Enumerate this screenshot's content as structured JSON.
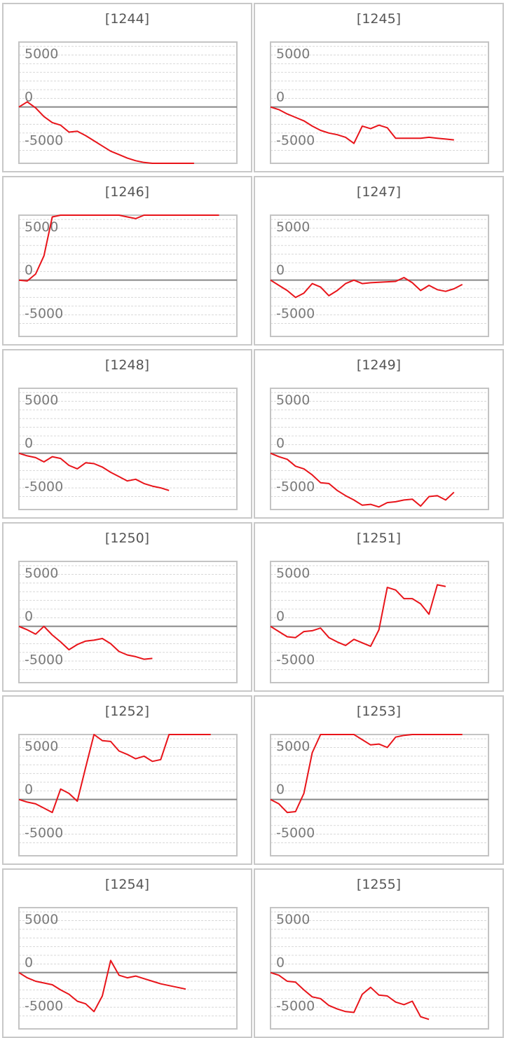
{
  "colors": {
    "line": "#e8141a",
    "zero": "#888888",
    "grid": "#d8d8d8",
    "frame": "#c4c4c4",
    "cap": "#f39a9a"
  },
  "chart_data": [
    {
      "type": "line",
      "title": "[1244]",
      "ylim": [
        -6500,
        7500
      ],
      "yticks": [
        5000,
        0,
        -5000
      ],
      "y": [
        0,
        600,
        -100,
        -1100,
        -1800,
        -2100,
        -2900,
        -2800,
        -3300,
        -3900,
        -4500,
        -5100,
        -5500,
        -5900,
        -6200,
        -6400,
        -6500,
        -6500,
        -6500,
        -6500,
        -6500,
        -6500
      ]
    },
    {
      "type": "line",
      "title": "[1245]",
      "ylim": [
        -6500,
        7500
      ],
      "yticks": [
        5000,
        0,
        -5000
      ],
      "y": [
        0,
        -300,
        -800,
        -1200,
        -1600,
        -2200,
        -2700,
        -3000,
        -3200,
        -3500,
        -4200,
        -2200,
        -2500,
        -2100,
        -2400,
        -3600,
        -3600,
        -3600,
        -3600,
        -3500,
        -3600,
        -3700,
        -3800
      ]
    },
    {
      "type": "line",
      "title": "[1246]",
      "ylim": [
        -6500,
        7500
      ],
      "yticks": [
        5000,
        0,
        -5000
      ],
      "y": [
        0,
        -100,
        700,
        2800,
        7300,
        7500,
        7500,
        7500,
        7500,
        7500,
        7500,
        7500,
        7500,
        7300,
        7100,
        7500,
        7500,
        7500,
        7500,
        7500,
        7500,
        7500,
        7500,
        7500,
        7500
      ]
    },
    {
      "type": "line",
      "title": "[1247]",
      "ylim": [
        -6500,
        7500
      ],
      "yticks": [
        5000,
        0,
        -5000
      ],
      "y": [
        0,
        -600,
        -1200,
        -2000,
        -1500,
        -400,
        -800,
        -1800,
        -1200,
        -400,
        0,
        -400,
        -300,
        -250,
        -200,
        -150,
        300,
        -300,
        -1200,
        -600,
        -1100,
        -1300,
        -1000,
        -500
      ]
    },
    {
      "type": "line",
      "title": "[1248]",
      "ylim": [
        -6500,
        7500
      ],
      "yticks": [
        5000,
        0,
        -5000
      ],
      "y": [
        0,
        -300,
        -500,
        -1000,
        -400,
        -600,
        -1400,
        -1800,
        -1100,
        -1200,
        -1600,
        -2200,
        -2700,
        -3200,
        -3000,
        -3500,
        -3800,
        -4000,
        -4300
      ]
    },
    {
      "type": "line",
      "title": "[1249]",
      "ylim": [
        -6500,
        7500
      ],
      "yticks": [
        5000,
        0,
        -5000
      ],
      "y": [
        0,
        -400,
        -700,
        -1500,
        -1800,
        -2500,
        -3400,
        -3500,
        -4300,
        -4900,
        -5400,
        -6000,
        -5900,
        -6200,
        -5700,
        -5600,
        -5400,
        -5300,
        -6100,
        -5000,
        -4900,
        -5400,
        -4500
      ]
    },
    {
      "type": "line",
      "title": "[1250]",
      "ylim": [
        -6500,
        7500
      ],
      "yticks": [
        5000,
        0,
        -5000
      ],
      "y": [
        0,
        -400,
        -900,
        0,
        -1000,
        -1800,
        -2700,
        -2100,
        -1700,
        -1600,
        -1400,
        -2000,
        -2900,
        -3300,
        -3500,
        -3800,
        -3700
      ]
    },
    {
      "type": "line",
      "title": "[1251]",
      "ylim": [
        -6500,
        7500
      ],
      "yticks": [
        5000,
        0,
        -5000
      ],
      "y": [
        0,
        -600,
        -1200,
        -1300,
        -600,
        -500,
        -200,
        -1300,
        -1800,
        -2200,
        -1500,
        -1900,
        -2300,
        -400,
        4500,
        4200,
        3200,
        3200,
        2600,
        1400,
        4800,
        4600
      ]
    },
    {
      "type": "line",
      "title": "[1252]",
      "ylim": [
        -6500,
        7500
      ],
      "yticks": [
        5000,
        0,
        -5000
      ],
      "y": [
        0,
        -300,
        -500,
        -1000,
        -1500,
        1200,
        700,
        -200,
        3700,
        7500,
        6800,
        6700,
        5600,
        5200,
        4700,
        5000,
        4400,
        4600,
        7500,
        7500,
        7500,
        7500,
        7500,
        7500
      ]
    },
    {
      "type": "line",
      "title": "[1253]",
      "ylim": [
        -6500,
        7500
      ],
      "yticks": [
        5000,
        0,
        -5000
      ],
      "y": [
        0,
        -500,
        -1500,
        -1400,
        700,
        5400,
        7500,
        7500,
        7500,
        7500,
        7500,
        6900,
        6300,
        6400,
        6000,
        7200,
        7400,
        7500,
        7500,
        7500,
        7500,
        7500,
        7500,
        7500
      ]
    },
    {
      "type": "line",
      "title": "[1254]",
      "ylim": [
        -6500,
        7500
      ],
      "yticks": [
        5000,
        0,
        -5000
      ],
      "y": [
        0,
        -600,
        -1000,
        -1200,
        -1400,
        -2000,
        -2500,
        -3300,
        -3600,
        -4500,
        -2700,
        1400,
        -300,
        -600,
        -400,
        -700,
        -1000,
        -1300,
        -1500,
        -1700,
        -1900
      ]
    },
    {
      "type": "line",
      "title": "[1255]",
      "ylim": [
        -6500,
        7500
      ],
      "yticks": [
        5000,
        0,
        -5000
      ],
      "y": [
        0,
        -300,
        -1000,
        -1100,
        -2000,
        -2800,
        -3000,
        -3800,
        -4200,
        -4500,
        -4600,
        -2500,
        -1700,
        -2600,
        -2700,
        -3400,
        -3700,
        -3300,
        -5100,
        -5400
      ]
    }
  ]
}
